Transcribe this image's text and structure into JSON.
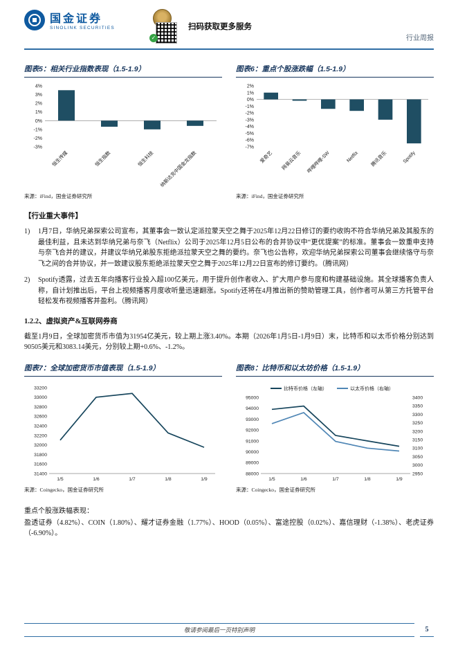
{
  "header": {
    "brand": "国金证券",
    "brand_en": "SINOLINK SECURITIES",
    "scan_text": "扫码获取更多服务",
    "doc_type": "行业周报"
  },
  "colors": {
    "brand_blue": "#0f5aa0",
    "navy": "#17365d",
    "bar": "#1f4e63",
    "line_primary": "#16455c",
    "line_secondary": "#4f86b5",
    "rule_blue": "#2e6da4"
  },
  "figures": {
    "fig5": {
      "title": "图表5：相关行业指数表现（1.5-1.9）",
      "source": "来源：iFind，国金证券研究所"
    },
    "fig6": {
      "title": "图表6：重点个股涨跌幅（1.5-1.9）",
      "source": "来源：iFind，国金证券研究所"
    },
    "fig7": {
      "title": "图表7：全球加密货币市值表现（1.5-1.9）",
      "source": "来源：Coingecko，国金证券研究所"
    },
    "fig8": {
      "title": "图表8：比特币和以太坊价格（1.5-1.9）",
      "source": "来源：Coingecko，国金证券研究所"
    }
  },
  "sections": {
    "major_events_heading": "【行业重大事件】",
    "events": [
      {
        "num": "1)",
        "text": "1月7日，华纳兄弟探索公司宣布，其董事会一致认定派拉蒙天空之舞于2025年12月22日修订的要约收购不符合华纳兄弟及其股东的最佳利益，且未达到华纳兄弟与奈飞（Netflix）公司于2025年12月5日公布的合并协议中“更优提案”的标准。董事会一致重申支持与奈飞合并的建议，并建议华纳兄弟股东拒绝派拉蒙天空之舞的要约。奈飞也公告称，欢迎华纳兄弟探索公司董事会继续恪守与奈飞之间的合并协议，并一致建议股东拒绝派拉蒙天空之舞于2025年12月22日宣布的修订要约。（腾讯网）"
      },
      {
        "num": "2)",
        "text": "Spotify透露，过去五年向播客行业投入超100亿美元，用于提升创作者收入、扩大用户参与度和构建基础设施。其全球播客负责人称，自计划推出后，平台上视频播客月度收听量迅速翻涨。Spotify还将在4月推出新的赞助管理工具，创作者可从第三方托管平台轻松发布视频播客并盈利。（腾讯网）"
      }
    ],
    "sub_heading": "1.2.2、虚拟资产&互联网券商",
    "crypto_para": "截至1月9日，全球加密货币市值为31954亿美元，较上期上涨3.40%。本期（2026年1月5日-1月9日）末，比特币和以太币价格分别达到90505美元和3083.14美元，分别较上期+0.6%、-1.2%。",
    "stock_label": "重点个股涨跌幅表现：",
    "stock_para": "盈透证券（4.82%）、COIN（1.80%）、耀才证券金融（1.77%）、HOOD（0.05%）、富途控股（0.02%）、嘉信理财（-1.38%）、老虎证券（-6.90%）。"
  },
  "chart_data": [
    {
      "id": "chart5",
      "type": "bar",
      "title": "相关行业指数表现（1.5-1.9）",
      "categories": [
        "恒生传媒",
        "恒生指数",
        "恒生科技",
        "纳斯达克中国金龙指数"
      ],
      "values": [
        3.5,
        -0.7,
        -1.0,
        -0.6
      ],
      "ylim": [
        -3,
        4
      ],
      "ystep": 1,
      "unit": "%"
    },
    {
      "id": "chart6",
      "type": "bar",
      "title": "重点个股涨跌幅（1.5-1.9）",
      "categories": [
        "爱奇艺",
        "网易云音乐",
        "哔哩哔哩-SW",
        "Netflix",
        "腾讯音乐",
        "Spotify"
      ],
      "values": [
        1.0,
        -0.2,
        -1.4,
        -1.7,
        -3.0,
        -6.5
      ],
      "ylim": [
        -7,
        2
      ],
      "ystep": 1,
      "unit": "%"
    },
    {
      "id": "chart7",
      "type": "line",
      "title": "全球加密货币市值表现（1.5-1.9）",
      "x": [
        "1/5",
        "1/6",
        "1/7",
        "1/8",
        "1/9"
      ],
      "series": [
        {
          "values": [
            32100,
            33000,
            33080,
            32250,
            31950
          ]
        }
      ],
      "ylim": [
        31400,
        33200
      ],
      "ystep": 200,
      "legend": false
    },
    {
      "id": "chart8",
      "type": "line",
      "title": "比特币和以太坊价格（1.5-1.9）",
      "x": [
        "1/5",
        "1/6",
        "1/7",
        "1/8",
        "1/9"
      ],
      "series": [
        {
          "name": "比特币价格（左轴）",
          "axis": "left",
          "values": [
            93900,
            94200,
            91500,
            91000,
            90505
          ]
        },
        {
          "name": "以太币价格（右轴）",
          "axis": "right",
          "values": [
            3245,
            3310,
            3140,
            3100,
            3083
          ]
        }
      ],
      "ylim": [
        88000,
        95000
      ],
      "ystep": 1000,
      "y2lim": [
        2950,
        3400
      ],
      "y2step": 50,
      "legend": true
    }
  ],
  "footer": {
    "disclaimer": "敬请参阅最后一页特别声明",
    "page_number": "5"
  }
}
